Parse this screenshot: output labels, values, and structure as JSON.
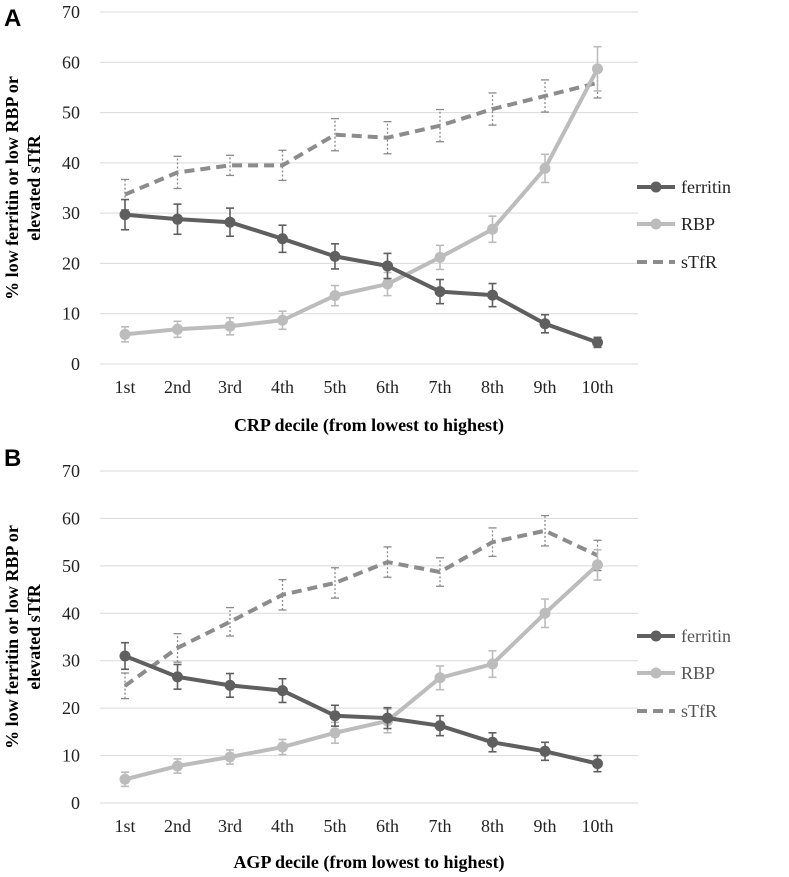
{
  "legend_labels": [
    "ferritin",
    "RBP",
    "sTfR"
  ],
  "colors": {
    "ferritin": "#5f5f5f",
    "RBP": "#bcbcbc",
    "sTfR": "#8c8c8c",
    "grid": "#d9d9d9"
  },
  "chart_data": [
    {
      "panel": "A",
      "type": "line",
      "title": "",
      "categories": [
        "1st",
        "2nd",
        "3rd",
        "4th",
        "5th",
        "6th",
        "7th",
        "8th",
        "9th",
        "10th"
      ],
      "xlabel": "CRP decile (from lowest to highest)",
      "ylabel_lines": [
        "% low ferritin or low RBP or",
        "elevated sTfR"
      ],
      "ylim": [
        0,
        70
      ],
      "yticks": [
        0,
        10,
        20,
        30,
        40,
        50,
        60,
        70
      ],
      "legend": "right",
      "grid": true,
      "series": [
        {
          "name": "ferritin",
          "values": [
            29.7,
            28.8,
            28.2,
            24.9,
            21.4,
            19.5,
            14.4,
            13.7,
            8.0,
            4.3
          ],
          "err": [
            3.0,
            3.0,
            2.8,
            2.7,
            2.5,
            2.5,
            2.4,
            2.3,
            1.8,
            1.0
          ]
        },
        {
          "name": "RBP",
          "values": [
            5.9,
            6.9,
            7.5,
            8.7,
            13.6,
            15.9,
            21.2,
            26.8,
            38.9,
            58.7
          ],
          "err": [
            1.5,
            1.6,
            1.7,
            1.8,
            2.0,
            2.3,
            2.4,
            2.6,
            2.8,
            4.4
          ]
        },
        {
          "name": "sTfR",
          "values": [
            33.7,
            38.1,
            39.5,
            39.5,
            45.6,
            45.0,
            47.4,
            50.7,
            53.3,
            55.9
          ],
          "err": [
            3.0,
            3.2,
            2.0,
            3.0,
            3.2,
            3.2,
            3.2,
            3.2,
            3.2,
            3.0
          ]
        }
      ]
    },
    {
      "panel": "B",
      "type": "line",
      "title": "",
      "categories": [
        "1st",
        "2nd",
        "3rd",
        "4th",
        "5th",
        "6th",
        "7th",
        "8th",
        "9th",
        "10th"
      ],
      "xlabel": "AGP decile (from lowest to highest)",
      "ylabel_lines": [
        "% low ferritin or low RBP or",
        "elevated sTfR"
      ],
      "ylim": [
        0,
        70
      ],
      "yticks": [
        0,
        10,
        20,
        30,
        40,
        50,
        60,
        70
      ],
      "legend": "right",
      "grid": true,
      "series": [
        {
          "name": "ferritin",
          "values": [
            31.0,
            26.6,
            24.8,
            23.7,
            18.4,
            17.9,
            16.3,
            12.8,
            10.9,
            8.3
          ],
          "err": [
            2.8,
            2.6,
            2.5,
            2.5,
            2.2,
            2.2,
            2.1,
            2.0,
            1.9,
            1.7
          ]
        },
        {
          "name": "RBP",
          "values": [
            5.0,
            7.8,
            9.7,
            11.8,
            14.8,
            17.3,
            26.4,
            29.3,
            40.0,
            50.2
          ],
          "err": [
            1.5,
            1.5,
            1.5,
            1.6,
            2.2,
            2.5,
            2.5,
            2.8,
            3.0,
            3.2
          ]
        },
        {
          "name": "sTfR",
          "values": [
            24.7,
            32.7,
            38.2,
            43.9,
            46.4,
            50.8,
            48.7,
            55.0,
            57.4,
            52.2
          ],
          "err": [
            2.7,
            3.0,
            3.0,
            3.2,
            3.2,
            3.2,
            3.0,
            3.0,
            3.2,
            3.2
          ]
        }
      ]
    }
  ]
}
